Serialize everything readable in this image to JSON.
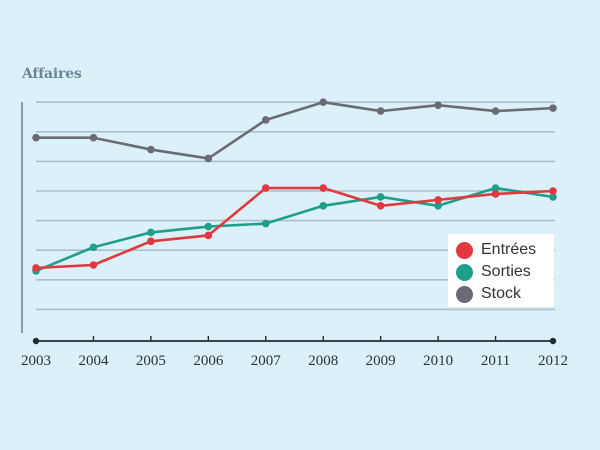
{
  "chart_data": {
    "type": "line",
    "title": "Affaires",
    "xlabel": "",
    "ylabel": "",
    "x": [
      "2003",
      "2004",
      "2005",
      "2006",
      "2007",
      "2008",
      "2009",
      "2010",
      "2011",
      "2012"
    ],
    "ylim": [
      0,
      8.2
    ],
    "y_gridlines": [
      1,
      2,
      3,
      4,
      5,
      6,
      7,
      8
    ],
    "y_units_note": "y-axis unlabeled; values in gridline units",
    "grid": true,
    "legend_position": "lower-right",
    "series": [
      {
        "name": "Entrées",
        "color": "#e0393e",
        "values": [
          2.4,
          2.5,
          3.3,
          3.5,
          5.1,
          5.1,
          4.5,
          4.7,
          4.9,
          5.0
        ]
      },
      {
        "name": "Sorties",
        "color": "#1f9e8c",
        "values": [
          2.3,
          3.1,
          3.6,
          3.8,
          3.9,
          4.5,
          4.8,
          4.5,
          5.1,
          4.8
        ]
      },
      {
        "name": "Stock",
        "color": "#6b6c73",
        "values": [
          6.8,
          6.8,
          6.4,
          6.1,
          7.4,
          8.0,
          7.7,
          7.9,
          7.7,
          7.8
        ]
      }
    ]
  }
}
